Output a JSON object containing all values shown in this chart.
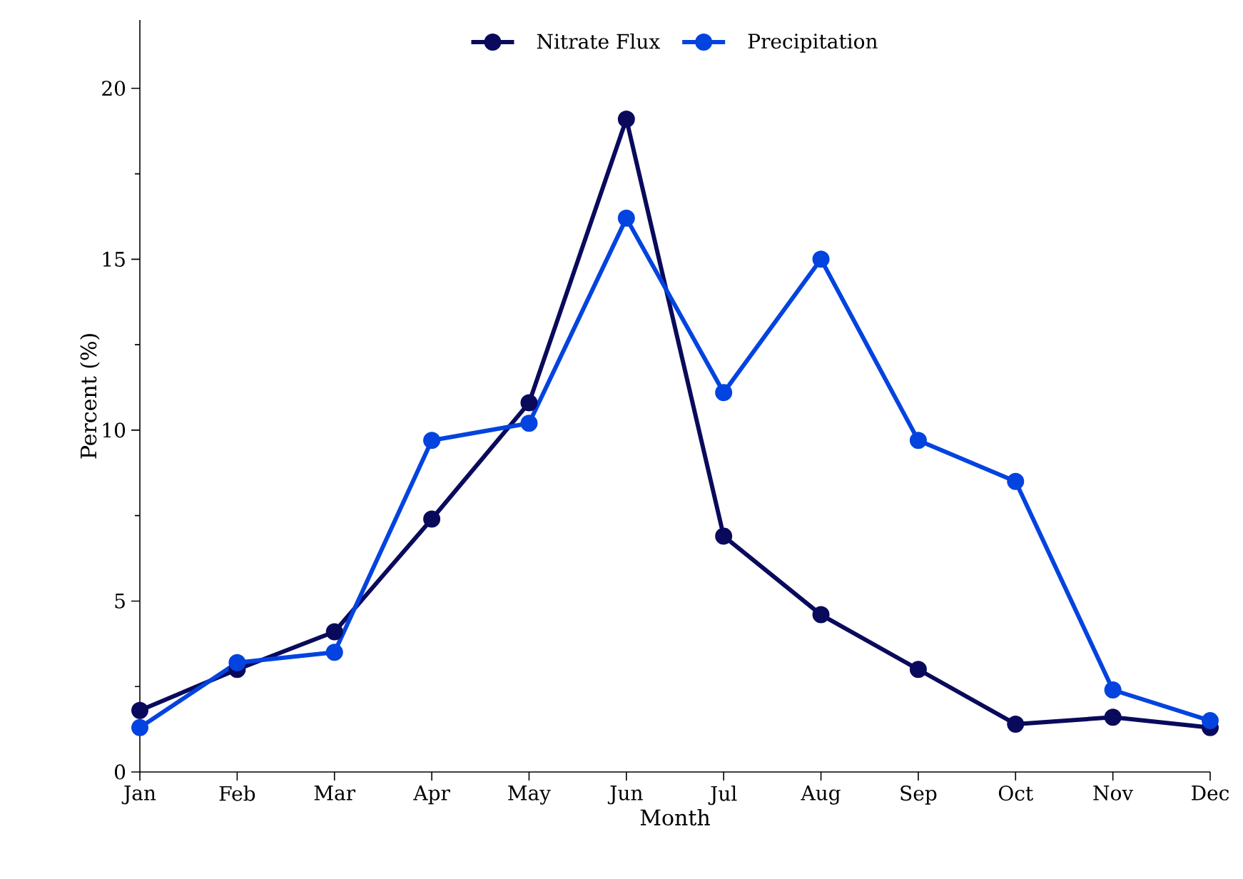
{
  "chart_data": {
    "type": "line",
    "xlabel": "Month",
    "ylabel": "Percent (%)",
    "categories": [
      "Jan",
      "Feb",
      "Mar",
      "Apr",
      "May",
      "Jun",
      "Jul",
      "Aug",
      "Sep",
      "Oct",
      "Nov",
      "Dec"
    ],
    "series": [
      {
        "name": "Nitrate Flux",
        "color": "#0a0a5c",
        "values": [
          1.8,
          3.0,
          4.1,
          7.4,
          10.8,
          19.1,
          6.9,
          4.6,
          3.0,
          1.4,
          1.6,
          1.3
        ]
      },
      {
        "name": "Precipitation",
        "color": "#0343df",
        "values": [
          1.3,
          3.2,
          3.5,
          9.7,
          10.2,
          16.2,
          11.1,
          15.0,
          9.7,
          8.5,
          2.4,
          1.5
        ]
      }
    ],
    "ylim": [
      0,
      22
    ],
    "yticks": [
      0,
      5,
      10,
      15,
      20
    ],
    "grid": false,
    "legend": "top",
    "marker": "circle",
    "line_style": "solid"
  }
}
